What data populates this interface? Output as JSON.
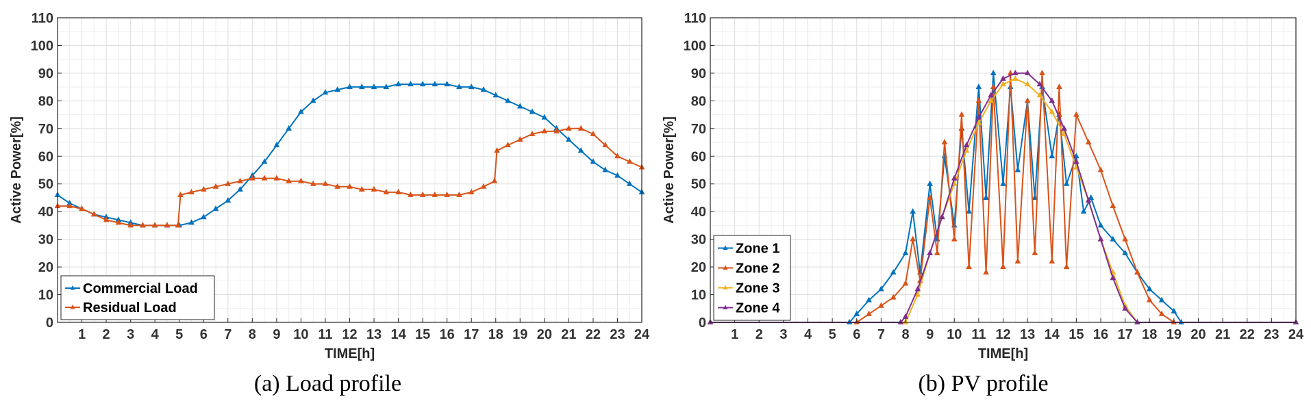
{
  "chart_data": [
    {
      "type": "line",
      "caption": "(a) Load profile",
      "xlabel": "TIME[h]",
      "ylabel": "Active Power[%]",
      "xlim": [
        0,
        24
      ],
      "ylim": [
        0,
        110
      ],
      "xticks": [
        1,
        2,
        3,
        4,
        5,
        6,
        7,
        8,
        9,
        10,
        11,
        12,
        13,
        14,
        15,
        16,
        17,
        18,
        19,
        20,
        21,
        22,
        23,
        24
      ],
      "yticks": [
        0,
        10,
        20,
        30,
        40,
        50,
        60,
        70,
        80,
        90,
        100,
        110
      ],
      "grid": true,
      "legend_position": "bottom-left",
      "series": [
        {
          "name": "Commercial Load",
          "color": "#0072BD",
          "x": [
            0,
            0.5,
            1,
            1.5,
            2,
            2.5,
            3,
            3.5,
            4,
            4.5,
            5,
            5.5,
            6,
            6.5,
            7,
            7.5,
            8,
            8.5,
            9,
            9.5,
            10,
            10.5,
            11,
            11.5,
            12,
            12.5,
            13,
            13.5,
            14,
            14.5,
            15,
            15.5,
            16,
            16.5,
            17,
            17.5,
            18,
            18.5,
            19,
            19.5,
            20,
            20.5,
            21,
            21.5,
            22,
            22.5,
            23,
            23.5,
            24
          ],
          "y": [
            46,
            43,
            41,
            39,
            38,
            37,
            36,
            35,
            35,
            35,
            35,
            36,
            38,
            41,
            44,
            48,
            53,
            58,
            64,
            70,
            76,
            80,
            83,
            84,
            85,
            85,
            85,
            85,
            86,
            86,
            86,
            86,
            86,
            85,
            85,
            84,
            82,
            80,
            78,
            76,
            74,
            70,
            66,
            62,
            58,
            55,
            53,
            50,
            47
          ]
        },
        {
          "name": "Residual Load",
          "color": "#D95319",
          "x": [
            0,
            0.5,
            1,
            1.5,
            2,
            2.5,
            3,
            3.5,
            4,
            4.5,
            4.95,
            5.05,
            5.5,
            6,
            6.5,
            7,
            7.5,
            8,
            8.5,
            9,
            9.5,
            10,
            10.5,
            11,
            11.5,
            12,
            12.5,
            13,
            13.5,
            14,
            14.5,
            15,
            15.5,
            16,
            16.5,
            17,
            17.5,
            17.95,
            18.05,
            18.5,
            19,
            19.5,
            20,
            20.5,
            21,
            21.5,
            22,
            22.5,
            23,
            23.5,
            24
          ],
          "y": [
            42,
            42,
            41,
            39,
            37,
            36,
            35,
            35,
            35,
            35,
            35,
            46,
            47,
            48,
            49,
            50,
            51,
            52,
            52,
            52,
            51,
            51,
            50,
            50,
            49,
            49,
            48,
            48,
            47,
            47,
            46,
            46,
            46,
            46,
            46,
            47,
            49,
            51,
            62,
            64,
            66,
            68,
            69,
            69,
            70,
            70,
            68,
            64,
            60,
            58,
            56
          ]
        }
      ]
    },
    {
      "type": "line",
      "caption": "(b) PV profile",
      "xlabel": "TIME[h]",
      "ylabel": "Active Power[%]",
      "xlim": [
        0,
        24
      ],
      "ylim": [
        0,
        110
      ],
      "xticks": [
        1,
        2,
        3,
        4,
        5,
        6,
        7,
        8,
        9,
        10,
        11,
        12,
        13,
        14,
        15,
        16,
        17,
        18,
        19,
        20,
        21,
        22,
        23,
        24
      ],
      "yticks": [
        0,
        10,
        20,
        30,
        40,
        50,
        60,
        70,
        80,
        90,
        100,
        110
      ],
      "grid": true,
      "legend_position": "bottom-left",
      "series": [
        {
          "name": "Zone 1",
          "color": "#0072BD",
          "x": [
            0,
            5.7,
            6,
            6.5,
            7,
            7.5,
            8,
            8.3,
            8.6,
            9,
            9.3,
            9.6,
            10,
            10.3,
            10.6,
            11,
            11.3,
            11.6,
            12,
            12.3,
            12.6,
            13,
            13.3,
            13.6,
            14,
            14.3,
            14.6,
            15,
            15.3,
            15.6,
            16,
            16.5,
            17,
            17.5,
            18,
            18.5,
            19,
            19.3,
            24
          ],
          "y": [
            0,
            0,
            3,
            8,
            12,
            18,
            25,
            40,
            18,
            50,
            30,
            60,
            35,
            70,
            40,
            85,
            45,
            90,
            50,
            85,
            55,
            80,
            45,
            85,
            60,
            75,
            50,
            60,
            40,
            45,
            35,
            30,
            25,
            18,
            12,
            8,
            4,
            0,
            0
          ]
        },
        {
          "name": "Zone 2",
          "color": "#D95319",
          "x": [
            0,
            6,
            6.5,
            7,
            7.5,
            8,
            8.3,
            8.6,
            9,
            9.3,
            9.6,
            10,
            10.3,
            10.6,
            11,
            11.3,
            11.6,
            12,
            12.3,
            12.6,
            13,
            13.3,
            13.6,
            14,
            14.3,
            14.6,
            15,
            15.5,
            16,
            16.5,
            17,
            17.5,
            18,
            18.5,
            19,
            24
          ],
          "y": [
            0,
            0,
            3,
            6,
            9,
            14,
            30,
            15,
            45,
            25,
            65,
            30,
            75,
            20,
            80,
            18,
            85,
            20,
            90,
            22,
            80,
            25,
            90,
            22,
            85,
            20,
            75,
            65,
            55,
            42,
            30,
            18,
            8,
            3,
            0,
            0
          ]
        },
        {
          "name": "Zone 3",
          "color": "#EDB120",
          "x": [
            0,
            8,
            8.5,
            9,
            9.5,
            10,
            10.5,
            11,
            11.5,
            12,
            12.5,
            13,
            13.5,
            14,
            14.5,
            15,
            15.5,
            16,
            16.5,
            17,
            17.5,
            24
          ],
          "y": [
            0,
            0,
            10,
            25,
            38,
            50,
            62,
            72,
            80,
            86,
            88,
            86,
            82,
            76,
            68,
            56,
            44,
            30,
            18,
            6,
            0,
            0
          ]
        },
        {
          "name": "Zone 4",
          "color": "#7E2F8E",
          "x": [
            0,
            7.8,
            8,
            8.5,
            9,
            9.5,
            10,
            10.5,
            11,
            11.5,
            12,
            12.5,
            13,
            13.5,
            14,
            14.5,
            15,
            15.5,
            16,
            16.5,
            17,
            17.5,
            24
          ],
          "y": [
            0,
            0,
            2,
            12,
            25,
            38,
            52,
            64,
            74,
            82,
            88,
            90,
            90,
            86,
            80,
            70,
            58,
            44,
            30,
            16,
            5,
            0,
            0
          ]
        }
      ]
    }
  ]
}
